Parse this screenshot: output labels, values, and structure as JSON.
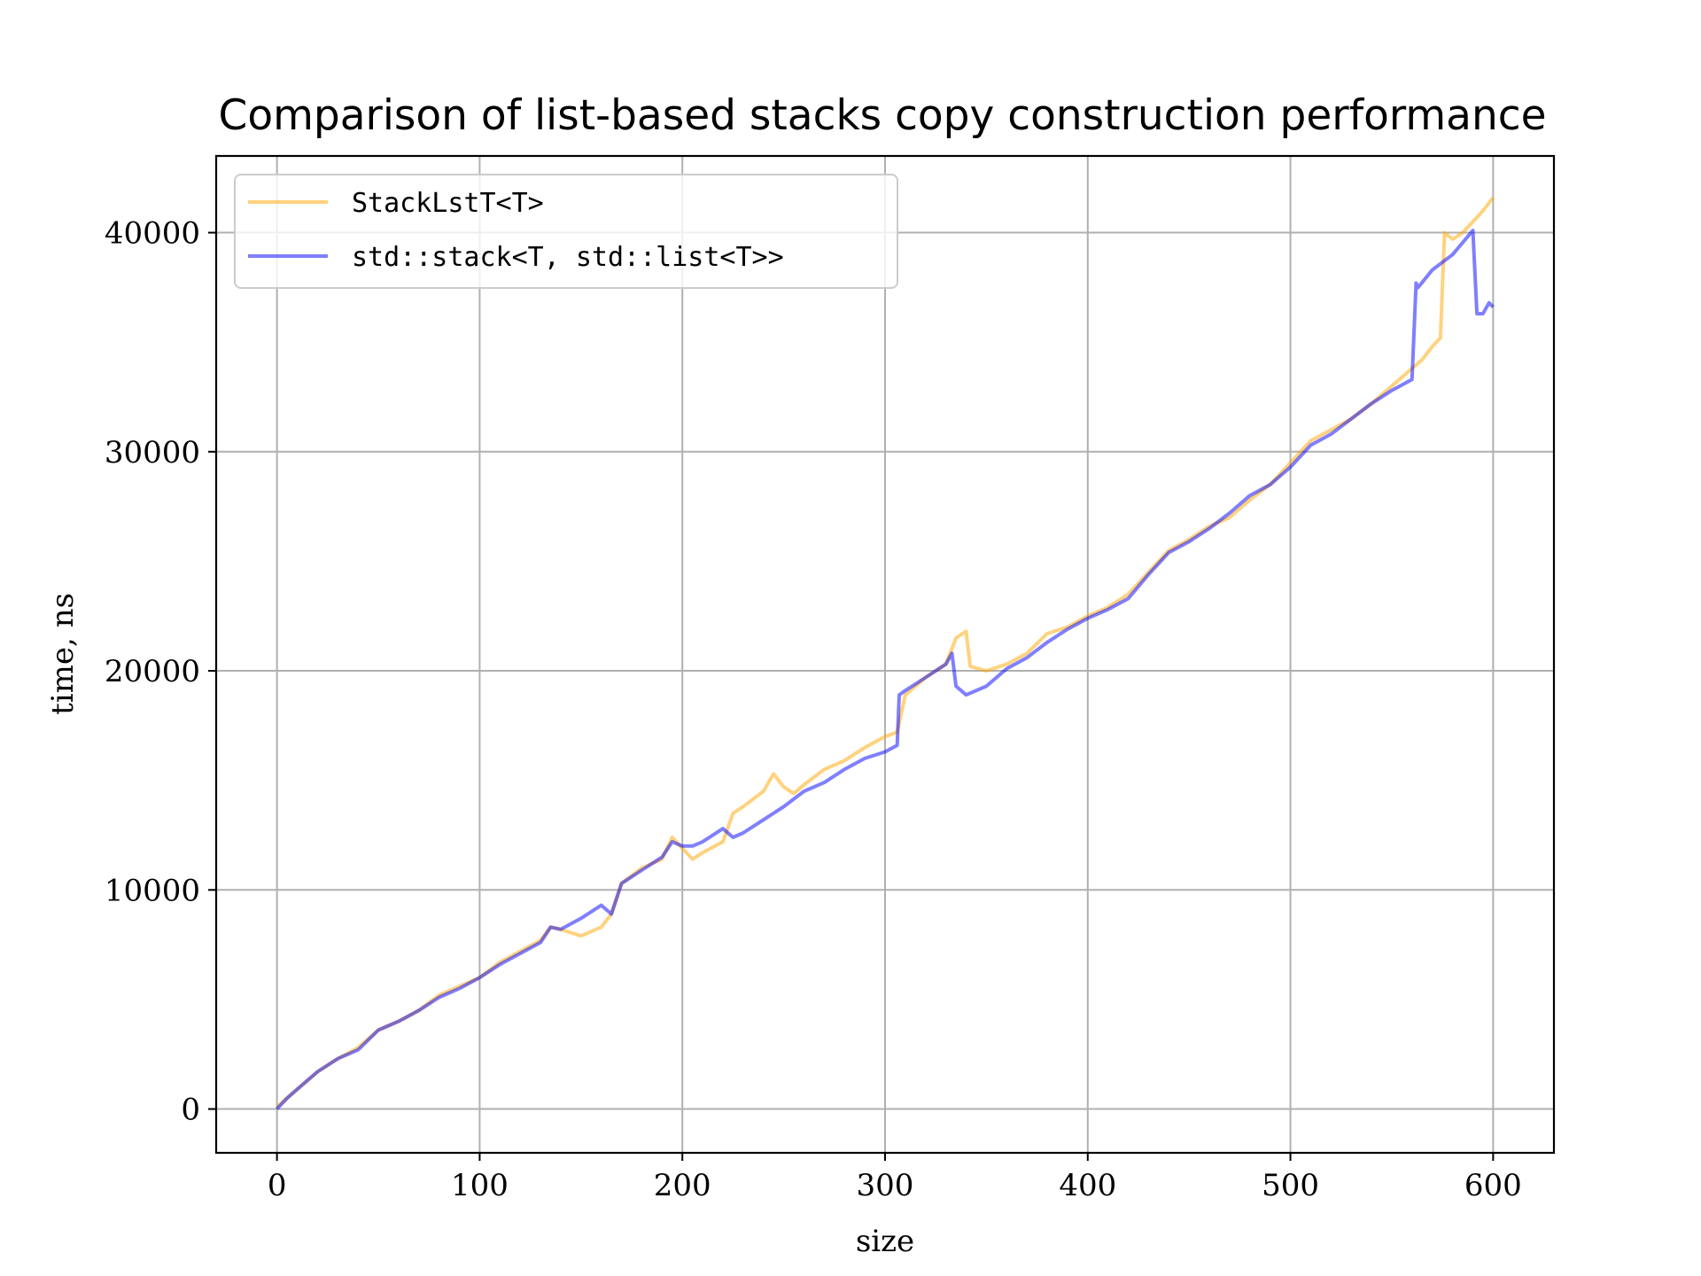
{
  "chart_data": {
    "type": "line",
    "title": "Comparison of list-based stacks copy construction performance",
    "xlabel": "size",
    "ylabel": "time, ns",
    "xlim": [
      -30,
      630
    ],
    "ylim": [
      -2000,
      43500
    ],
    "xticks": [
      0,
      100,
      200,
      300,
      400,
      500,
      600
    ],
    "yticks": [
      0,
      10000,
      20000,
      30000,
      40000
    ],
    "xtick_labels": [
      "0",
      "100",
      "200",
      "300",
      "400",
      "500",
      "600"
    ],
    "ytick_labels": [
      "0",
      "10000",
      "20000",
      "30000",
      "40000"
    ],
    "grid": true,
    "legend_position": "upper left",
    "series": [
      {
        "name": "StackLstT<T>",
        "color": "#ffa500",
        "opacity": 0.5,
        "x": [
          0,
          5,
          10,
          20,
          30,
          40,
          50,
          60,
          70,
          80,
          90,
          100,
          110,
          120,
          130,
          135,
          140,
          150,
          160,
          165,
          170,
          180,
          190,
          195,
          200,
          205,
          210,
          220,
          225,
          230,
          240,
          245,
          250,
          255,
          260,
          270,
          280,
          290,
          300,
          306,
          310,
          320,
          330,
          335,
          340,
          342,
          350,
          360,
          370,
          380,
          390,
          400,
          410,
          420,
          430,
          440,
          450,
          460,
          470,
          480,
          490,
          500,
          510,
          520,
          530,
          540,
          550,
          560,
          565,
          570,
          574,
          576,
          580,
          585,
          590,
          595,
          600
        ],
        "values": [
          100,
          500,
          900,
          1700,
          2300,
          2800,
          3600,
          4000,
          4500,
          5200,
          5600,
          6000,
          6700,
          7200,
          7700,
          8300,
          8200,
          7900,
          8300,
          8900,
          10300,
          11000,
          11400,
          12400,
          11900,
          11400,
          11700,
          12200,
          13500,
          13800,
          14500,
          15300,
          14700,
          14400,
          14800,
          15500,
          15900,
          16500,
          17000,
          17200,
          18900,
          19700,
          20300,
          21500,
          21800,
          20200,
          20000,
          20300,
          20800,
          21700,
          22000,
          22500,
          22900,
          23500,
          24500,
          25500,
          26000,
          26600,
          27000,
          27800,
          28500,
          29500,
          30500,
          31000,
          31500,
          32200,
          33000,
          33800,
          34200,
          34800,
          35200,
          40000,
          39700,
          40000,
          40500,
          41000,
          41600
        ]
      },
      {
        "name": "std::stack<T, std::list<T>>",
        "color": "#0000ff",
        "opacity": 0.5,
        "x": [
          0,
          5,
          10,
          20,
          30,
          40,
          50,
          60,
          70,
          80,
          90,
          100,
          110,
          120,
          130,
          135,
          140,
          150,
          160,
          165,
          170,
          180,
          190,
          195,
          200,
          205,
          210,
          220,
          225,
          230,
          240,
          250,
          260,
          270,
          280,
          290,
          300,
          306,
          307,
          310,
          320,
          330,
          333,
          335,
          340,
          350,
          360,
          370,
          380,
          390,
          400,
          410,
          420,
          430,
          440,
          450,
          460,
          470,
          480,
          490,
          500,
          510,
          520,
          530,
          540,
          550,
          560,
          562,
          563,
          570,
          580,
          590,
          592,
          595,
          598,
          600
        ],
        "values": [
          0,
          500,
          900,
          1700,
          2300,
          2700,
          3600,
          4000,
          4500,
          5100,
          5500,
          6000,
          6600,
          7100,
          7600,
          8300,
          8200,
          8700,
          9300,
          8900,
          10300,
          10900,
          11500,
          12200,
          12000,
          12000,
          12200,
          12800,
          12400,
          12600,
          13200,
          13800,
          14500,
          14900,
          15500,
          16000,
          16300,
          16600,
          18900,
          19100,
          19700,
          20300,
          20800,
          19300,
          18900,
          19300,
          20100,
          20600,
          21300,
          21900,
          22400,
          22800,
          23300,
          24400,
          25400,
          25900,
          26500,
          27200,
          28000,
          28500,
          29300,
          30300,
          30800,
          31500,
          32200,
          32800,
          33300,
          37700,
          37500,
          38300,
          39000,
          40100,
          36300,
          36300,
          36800,
          36600
        ]
      }
    ]
  }
}
